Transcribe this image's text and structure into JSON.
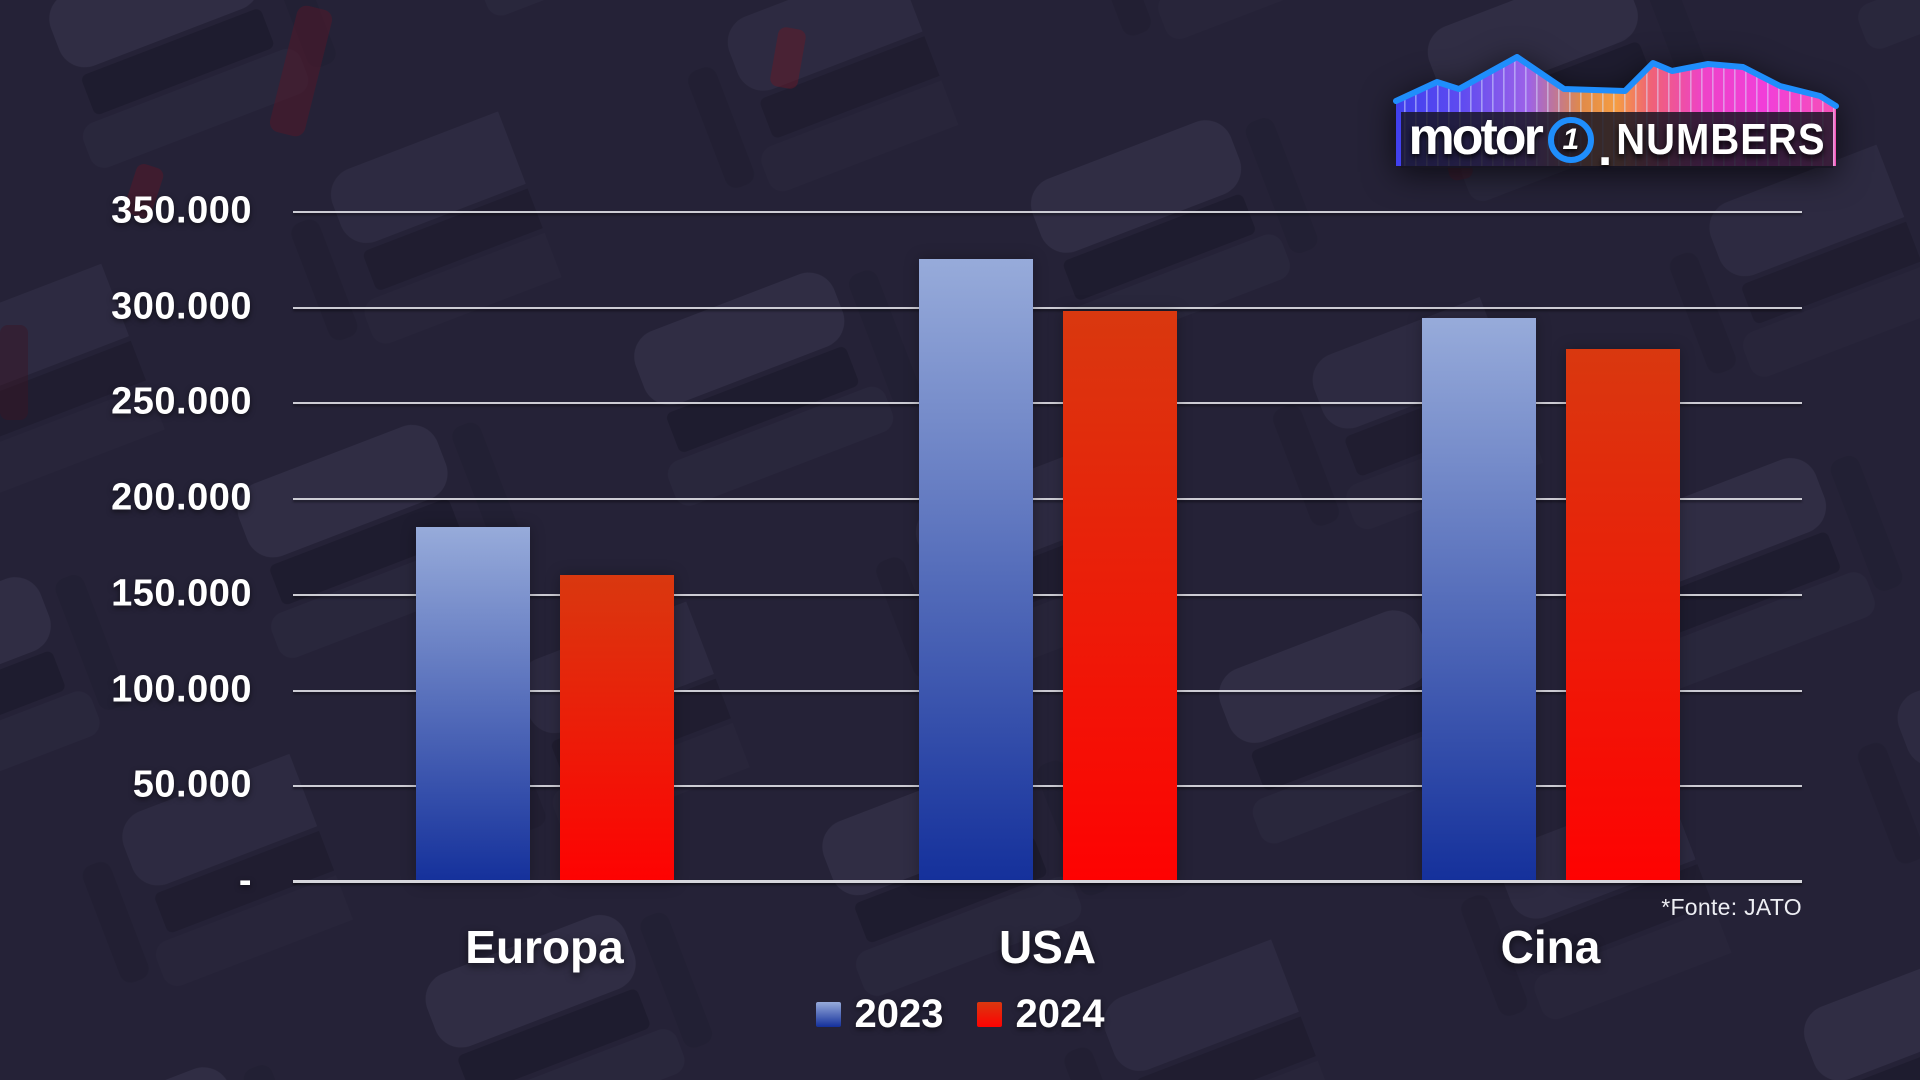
{
  "logo": {
    "brand": "motor",
    "number": "1",
    "dot": ".",
    "suffix": "NUMBERS"
  },
  "source_note": "*Fonte: JATO",
  "colors": {
    "background": "#262337",
    "grid_line": "#d8d8de",
    "axis_text": "#ffffff",
    "bar_2023_top": "#97abda",
    "bar_2023_bottom": "#14309b",
    "bar_2024_top": "#d9380f",
    "bar_2024_bottom": "#fe0202",
    "logo_outline_blue": "#1f8efc"
  },
  "chart_data": {
    "type": "bar",
    "title": "",
    "categories": [
      "Europa",
      "USA",
      "Cina"
    ],
    "series": [
      {
        "name": "2023",
        "color_top": "#97abda",
        "color_bottom": "#14309b",
        "values": [
          185000,
          325000,
          294000
        ]
      },
      {
        "name": "2024",
        "color_top": "#d9380f",
        "color_bottom": "#fe0202",
        "values": [
          160000,
          298000,
          278000
        ]
      }
    ],
    "ylim": [
      0,
      350000
    ],
    "ytick_step": 50000,
    "yticks": [
      {
        "value": 350000,
        "label": "350.000"
      },
      {
        "value": 300000,
        "label": "300.000"
      },
      {
        "value": 250000,
        "label": "250.000"
      },
      {
        "value": 200000,
        "label": "200.000"
      },
      {
        "value": 150000,
        "label": "150.000"
      },
      {
        "value": 100000,
        "label": "100.000"
      },
      {
        "value": 50000,
        "label": "50.000"
      },
      {
        "value": 0,
        "label": "-"
      }
    ],
    "grid": true,
    "legend_position": "bottom",
    "source": "*Fonte: JATO"
  }
}
